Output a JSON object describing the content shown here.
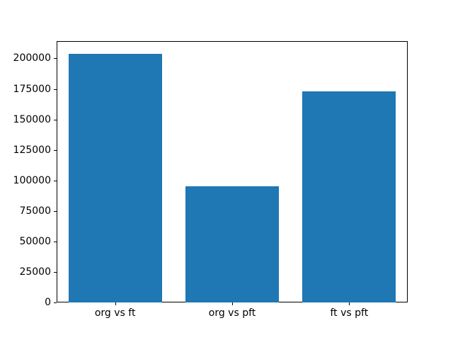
{
  "chart_data": {
    "type": "bar",
    "categories": [
      "org vs ft",
      "org vs pft",
      "ft vs pft"
    ],
    "values": [
      204000,
      95000,
      173000
    ],
    "title": "",
    "xlabel": "",
    "ylabel": "",
    "ylim": [
      0,
      214200
    ],
    "yticks": [
      0,
      25000,
      50000,
      75000,
      100000,
      125000,
      150000,
      175000,
      200000
    ],
    "bar_color": "#1f77b4",
    "axis_color": "#000000",
    "background_color": "#ffffff",
    "grid": false,
    "legend_position": "none",
    "bar_width_fraction": 0.8
  }
}
